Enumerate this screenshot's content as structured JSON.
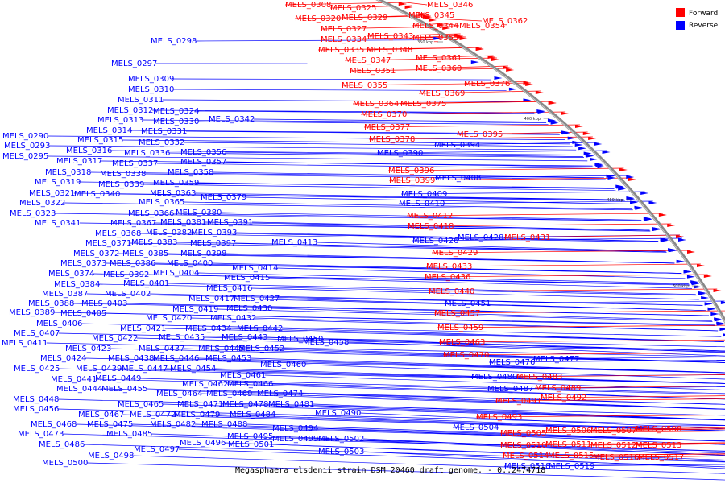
{
  "caption": "Megasphaera elsdenii strain DSM 20460 draft genome. - 0..2474718",
  "legend": {
    "forward_label": "Forward",
    "reverse_label": "Reverse",
    "forward_color": "#ff0000",
    "reverse_color": "#0000ff"
  },
  "ticks": [
    "350 kbp",
    "400 kbp",
    "450 kbp",
    "500 kbp",
    "550 kbp"
  ],
  "forward_labels": [
    "MELS_0308",
    "MELS_0325",
    "MELS_0346",
    "MELS_0320",
    "MELS_0329",
    "MELS_0345",
    "MELS_0327",
    "MELS_0344",
    "MELS_0354",
    "MELS_0362",
    "MELS_0334",
    "MELS_0343",
    "MELS_0353",
    "MELS_0335",
    "MELS_0348",
    "MELS_0347",
    "MELS_0361",
    "MELS_0351",
    "MELS_0360",
    "MELS_0355",
    "MELS_0376",
    "MELS_0369",
    "MELS_0364",
    "MELS_0375",
    "MELS_0370",
    "MELS_0377",
    "MELS_0395",
    "MELS_0378",
    "MELS_0396",
    "MELS_0399",
    "MELS_0412",
    "MELS_0418",
    "MELS_0431",
    "MELS_0429",
    "MELS_0433",
    "MELS_0436",
    "MELS_0440",
    "MELS_0457",
    "MELS_0459",
    "MELS_0463",
    "MELS_0470",
    "MELS_0483",
    "MELS_0489",
    "MELS_0491",
    "MELS_0492",
    "MELS_0493",
    "MELS_0505",
    "MELS_0506",
    "MELS_0507",
    "MELS_0508",
    "MELS_0510",
    "MELS_0511",
    "MELS_0512",
    "MELS_0513",
    "MELS_0514",
    "MELS_0515",
    "MELS_0516",
    "MELS_0517"
  ],
  "reverse_right_labels": [
    "MELS_0390",
    "MELS_0394",
    "MELS_0408",
    "MELS_0409",
    "MELS_0410",
    "MELS_0426",
    "MELS_0428",
    "MELS_0451",
    "MELS_0476",
    "MELS_0477",
    "MELS_0480",
    "MELS_0487",
    "MELS_0504",
    "MELS_0518",
    "MELS_0519"
  ],
  "reverse_left_labels": [
    "MELS_0298",
    "MELS_0297",
    "MELS_0309",
    "MELS_0310",
    "MELS_0311",
    "MELS_0312",
    "MELS_0324",
    "MELS_0313",
    "MELS_0330",
    "MELS_0342",
    "MELS_0290",
    "MELS_0314",
    "MELS_0331",
    "MELS_0293",
    "MELS_0315",
    "MELS_0332",
    "MELS_0295",
    "MELS_0316",
    "MELS_0336",
    "MELS_0356",
    "MELS_0317",
    "MELS_0337",
    "MELS_0357",
    "MELS_0318",
    "MELS_0338",
    "MELS_0358",
    "MELS_0319",
    "MELS_0339",
    "MELS_0359",
    "MELS_0321",
    "MELS_0340",
    "MELS_0363",
    "MELS_0322",
    "MELS_0365",
    "MELS_0379",
    "MELS_0323",
    "MELS_0366",
    "MELS_0380",
    "MELS_0341",
    "MELS_0367",
    "MELS_0381",
    "MELS_0391",
    "MELS_0368",
    "MELS_0382",
    "MELS_0393",
    "MELS_0371",
    "MELS_0383",
    "MELS_0397",
    "MELS_0413",
    "MELS_0372",
    "MELS_0385",
    "MELS_0398",
    "MELS_0373",
    "MELS_0386",
    "MELS_0400",
    "MELS_0374",
    "MELS_0392",
    "MELS_0404",
    "MELS_0414",
    "MELS_0384",
    "MELS_0401",
    "MELS_0415",
    "MELS_0387",
    "MELS_0402",
    "MELS_0416",
    "MELS_0388",
    "MELS_0403",
    "MELS_0417",
    "MELS_0427",
    "MELS_0389",
    "MELS_0405",
    "MELS_0419",
    "MELS_0430",
    "MELS_0406",
    "MELS_0420",
    "MELS_0432",
    "MELS_0407",
    "MELS_0421",
    "MELS_0434",
    "MELS_0442",
    "MELS_0411",
    "MELS_0422",
    "MELS_0435",
    "MELS_0443",
    "MELS_0450",
    "MELS_0458",
    "MELS_0423",
    "MELS_0437",
    "MELS_0445",
    "MELS_0452",
    "MELS_0424",
    "MELS_0438",
    "MELS_0446",
    "MELS_0453",
    "MELS_0460",
    "MELS_0425",
    "MELS_0439",
    "MELS_0447",
    "MELS_0454",
    "MELS_0441",
    "MELS_0449",
    "MELS_0461",
    "MELS_0444",
    "MELS_0455",
    "MELS_0462",
    "MELS_0466",
    "MELS_0448",
    "MELS_0464",
    "MELS_0469",
    "MELS_0474",
    "MELS_0456",
    "MELS_0465",
    "MELS_0471",
    "MELS_0478",
    "MELS_0481",
    "MELS_0467",
    "MELS_0472",
    "MELS_0479",
    "MELS_0484",
    "MELS_0490",
    "MELS_0468",
    "MELS_0475",
    "MELS_0482",
    "MELS_0488",
    "MELS_0473",
    "MELS_0485",
    "MELS_0494",
    "MELS_0486",
    "MELS_0496",
    "MELS_0495",
    "MELS_0499",
    "MELS_0502",
    "MELS_0497",
    "MELS_0501",
    "MELS_0498",
    "MELS_0503",
    "MELS_0500"
  ]
}
